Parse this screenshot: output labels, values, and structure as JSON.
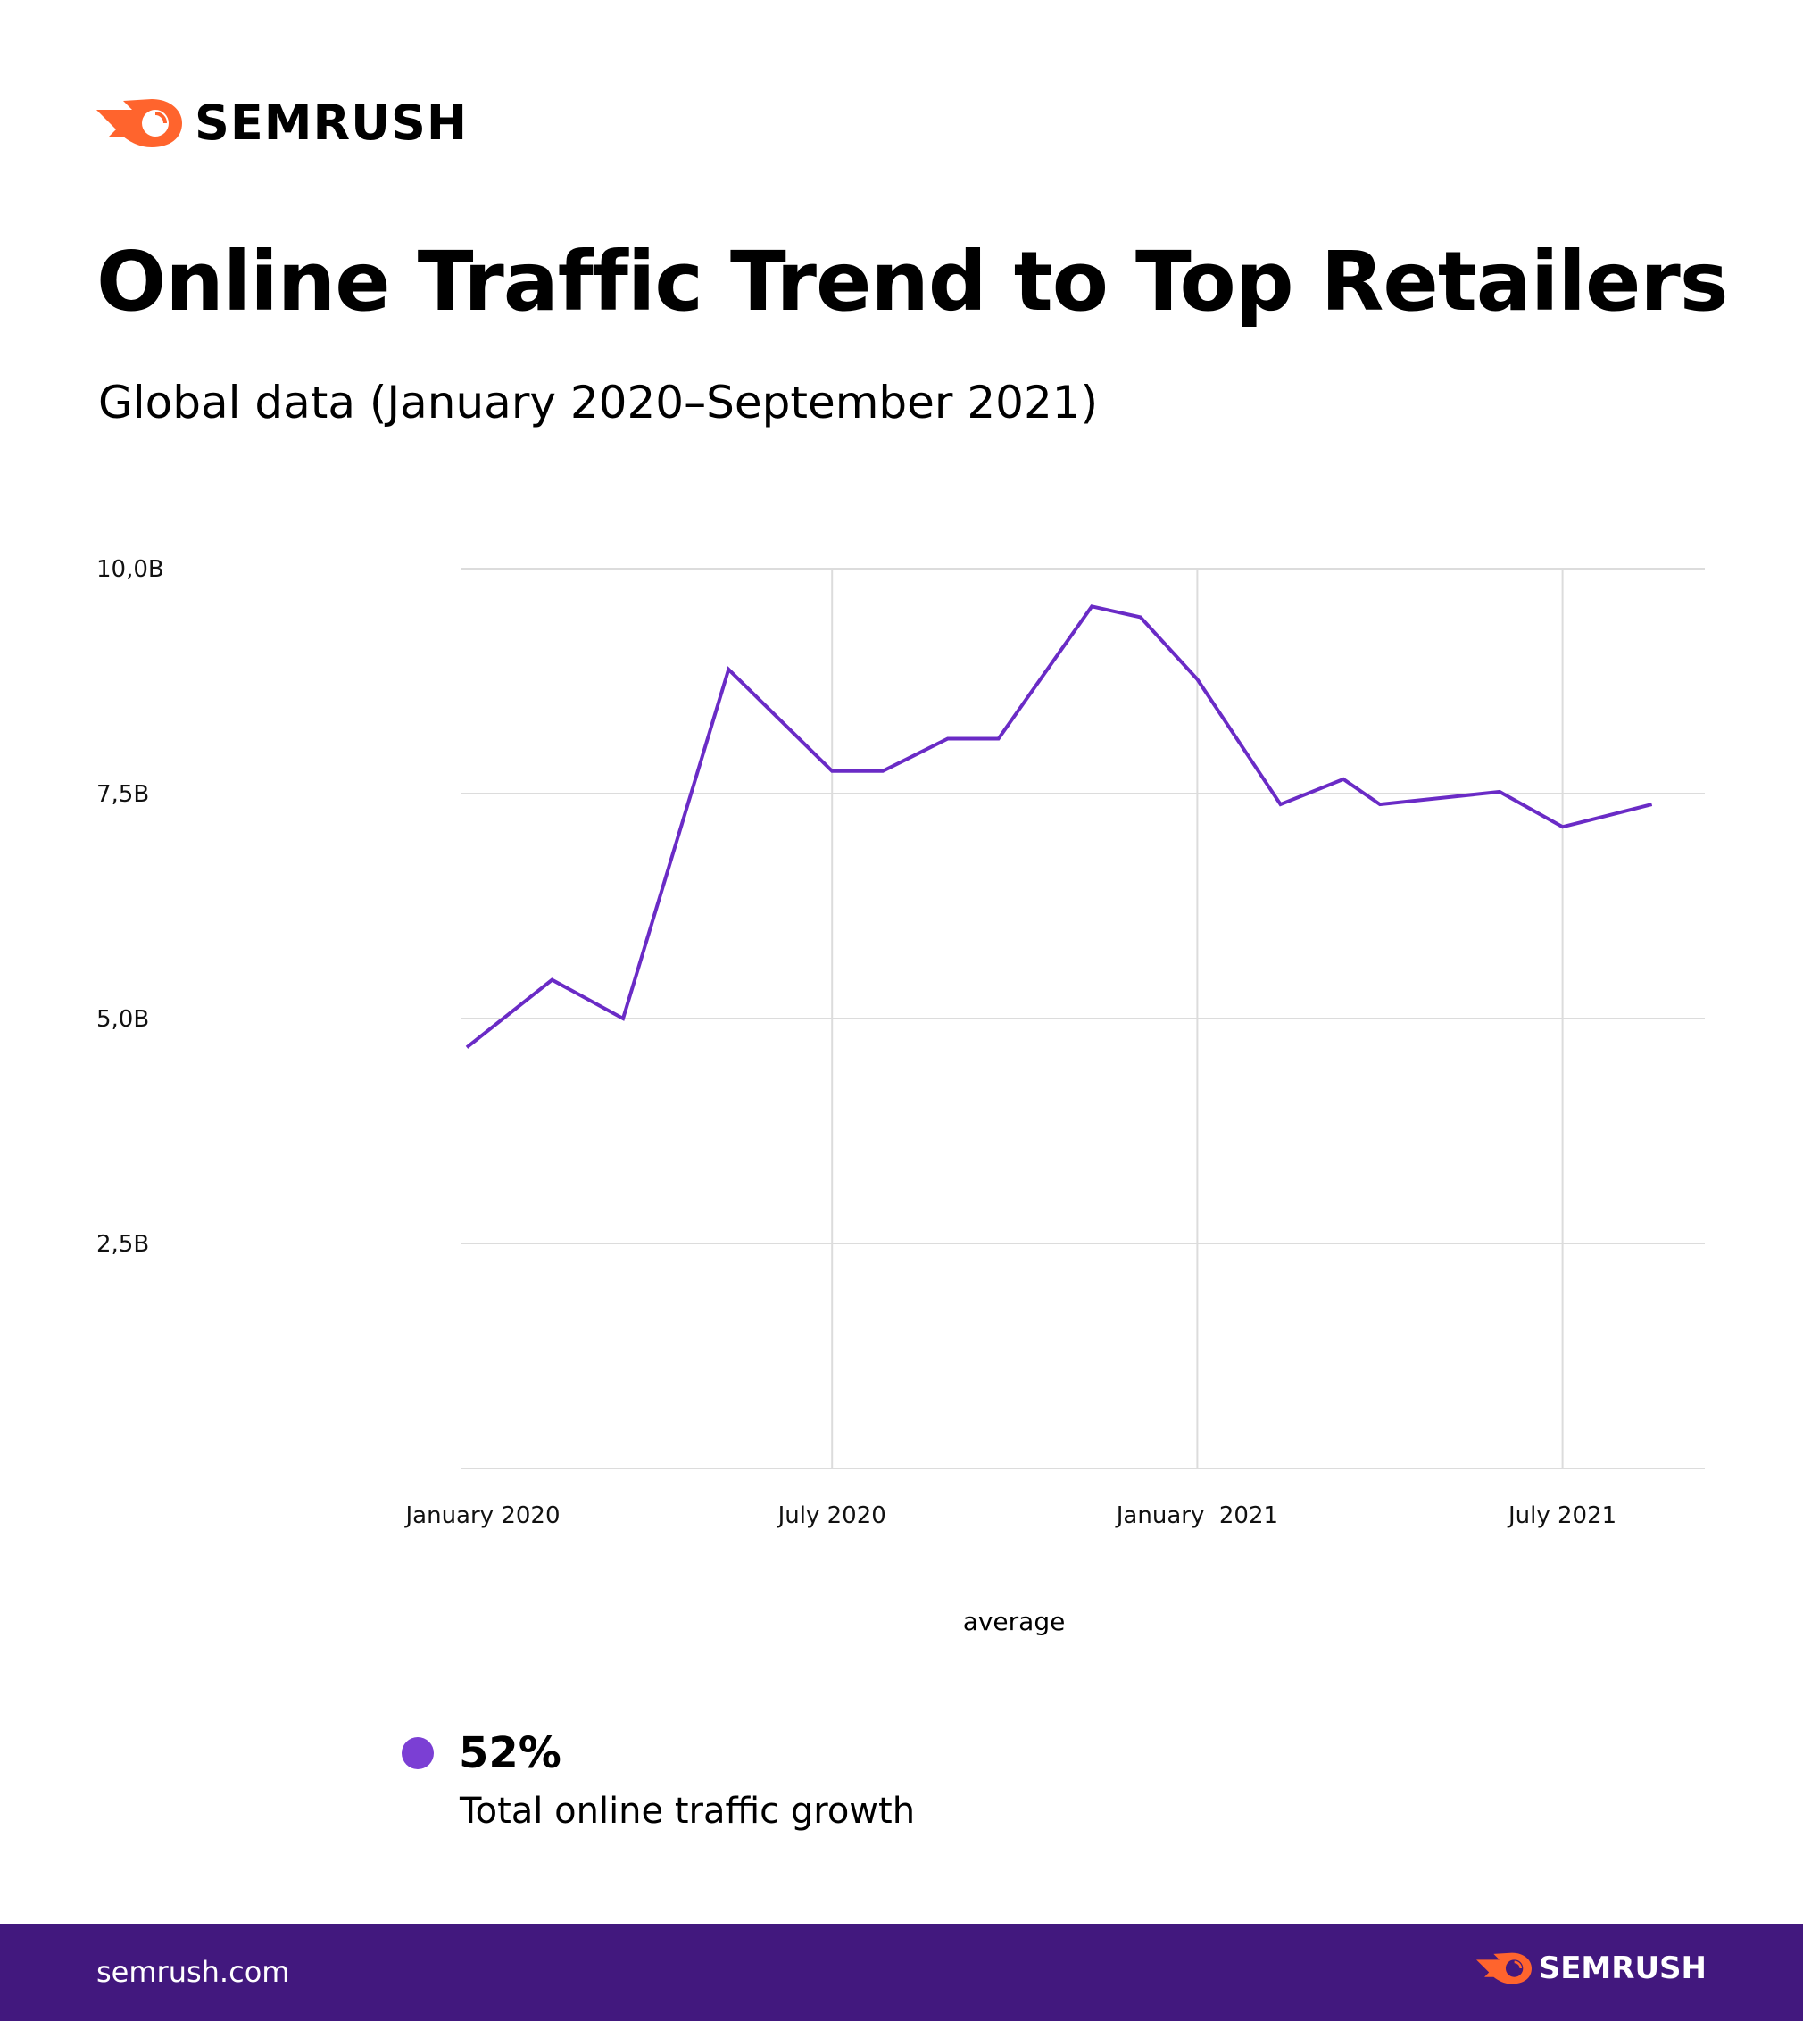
{
  "brand": {
    "name": "SEMRUSH",
    "color": "#ff642d",
    "icon": "semrush-fireball-logo"
  },
  "title": "Online Traffic Trend to Top Retailers",
  "subtitle": "Global data (January 2020–September 2021)",
  "chart_data": {
    "type": "line",
    "title": "",
    "xlabel": "average",
    "ylabel": "",
    "ylim": [
      0,
      10
    ],
    "y_unit": "B",
    "y_ticks": [
      {
        "value": 10,
        "label": "10,0B"
      },
      {
        "value": 7.5,
        "label": "7,5B"
      },
      {
        "value": 5,
        "label": "5,0B"
      },
      {
        "value": 2.5,
        "label": "2,5B"
      }
    ],
    "x_ticks": [
      {
        "date": "2020-01",
        "label": "January 2020"
      },
      {
        "date": "2020-07",
        "label": "July 2020"
      },
      {
        "date": "2021-01",
        "label": "January  2021"
      },
      {
        "date": "2021-07",
        "label": "July 2021"
      }
    ],
    "grid": true,
    "series": [
      {
        "color": "#6a2bc6",
        "points": [
          {
            "x": "2020-01-01",
            "y": 4.68
          },
          {
            "x": "2020-02-13",
            "y": 5.43
          },
          {
            "x": "2020-03-18",
            "y": 5.0
          },
          {
            "x": "2020-05-10",
            "y": 8.88
          },
          {
            "x": "2020-07-01",
            "y": 7.75
          },
          {
            "x": "2020-07-26",
            "y": 7.75
          },
          {
            "x": "2020-08-28",
            "y": 8.11
          },
          {
            "x": "2020-09-23",
            "y": 8.11
          },
          {
            "x": "2020-11-09",
            "y": 9.58
          },
          {
            "x": "2020-12-03",
            "y": 9.46
          },
          {
            "x": "2021-01-01",
            "y": 8.77
          },
          {
            "x": "2021-02-12",
            "y": 7.38
          },
          {
            "x": "2021-03-13",
            "y": 7.66
          },
          {
            "x": "2021-04-01",
            "y": 7.38
          },
          {
            "x": "2021-05-30",
            "y": 7.52
          },
          {
            "x": "2021-07-01",
            "y": 7.13
          },
          {
            "x": "2021-08-15",
            "y": 7.38
          }
        ]
      }
    ]
  },
  "legend": {
    "value": "52%",
    "label": "Total online traffic growth",
    "color": "#7b3fd4"
  },
  "footer": {
    "url": "semrush.com",
    "background": "#42187e"
  }
}
